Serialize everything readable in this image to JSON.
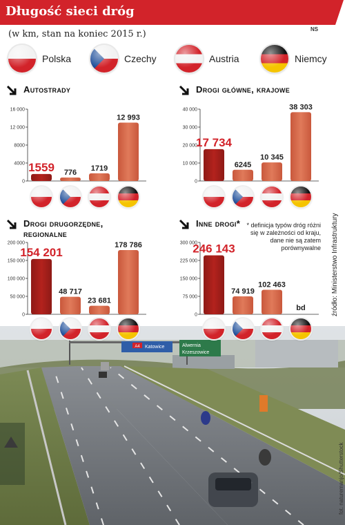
{
  "header": {
    "title": "Długość sieci dróg",
    "subtitle": "(w km, stan na koniec 2015 r.)",
    "badge": "NS"
  },
  "legend": [
    {
      "country": "Polska",
      "flag": "pl"
    },
    {
      "country": "Czechy",
      "flag": "cz"
    },
    {
      "country": "Austria",
      "flag": "at"
    },
    {
      "country": "Niemcy",
      "flag": "de"
    }
  ],
  "colors": {
    "accent": "#d2232a",
    "bar_dark": "#8e1a16",
    "bar_light": "#e07a5a"
  },
  "chart_data": [
    {
      "type": "bar",
      "title": "Autostrady",
      "categories": [
        "Polska",
        "Czechy",
        "Austria",
        "Niemcy"
      ],
      "values": [
        1559,
        776,
        1719,
        12993
      ],
      "value_labels": [
        "1559",
        "776",
        "1719",
        "12 993"
      ],
      "ylim": [
        0,
        16000
      ],
      "ticks": [
        "16 000",
        "12 000",
        "8000",
        "4000",
        "0"
      ],
      "tick_values": [
        16000,
        12000,
        8000,
        4000,
        0
      ],
      "highlight": 0
    },
    {
      "type": "bar",
      "title": "Drogi główne, krajowe",
      "categories": [
        "Polska",
        "Czechy",
        "Austria",
        "Niemcy"
      ],
      "values": [
        17734,
        6245,
        10345,
        38303
      ],
      "value_labels": [
        "17 734",
        "6245",
        "10 345",
        "38 303"
      ],
      "ylim": [
        0,
        40000
      ],
      "ticks": [
        "40 000",
        "30 000",
        "20 000",
        "10 000",
        "0"
      ],
      "tick_values": [
        40000,
        30000,
        20000,
        10000,
        0
      ],
      "highlight": 0
    },
    {
      "type": "bar",
      "title": "Drogi drugorzędne, regionalne",
      "categories": [
        "Polska",
        "Czechy",
        "Austria",
        "Niemcy"
      ],
      "values": [
        154201,
        48717,
        23681,
        178786
      ],
      "value_labels": [
        "154 201",
        "48 717",
        "23 681",
        "178 786"
      ],
      "ylim": [
        0,
        200000
      ],
      "ticks": [
        "200 000",
        "150 000",
        "100 000",
        "50 000",
        "0"
      ],
      "tick_values": [
        200000,
        150000,
        100000,
        50000,
        0
      ],
      "highlight": 0
    },
    {
      "type": "bar",
      "title": "Inne drogi*",
      "categories": [
        "Polska",
        "Czechy",
        "Austria",
        "Niemcy"
      ],
      "values": [
        246143,
        74919,
        102463,
        null
      ],
      "value_labels": [
        "246 143",
        "74 919",
        "102 463",
        "bd"
      ],
      "ylim": [
        0,
        300000
      ],
      "ticks": [
        "300 000",
        "225 000",
        "150 000",
        "75 000",
        "0"
      ],
      "tick_values": [
        300000,
        225000,
        150000,
        75000,
        0
      ],
      "highlight": 0
    }
  ],
  "footnote": "* definicja typów dróg różni się w zależności od kraju, dane nie są zatem porównywalne",
  "source": "źródło: Ministerstwo Infrastruktury",
  "photo": {
    "credit": "fot. naturemanjo/Shutterstock",
    "signs": [
      "A4",
      "Katowice",
      "Alwernia",
      "Krzeszowice"
    ]
  }
}
